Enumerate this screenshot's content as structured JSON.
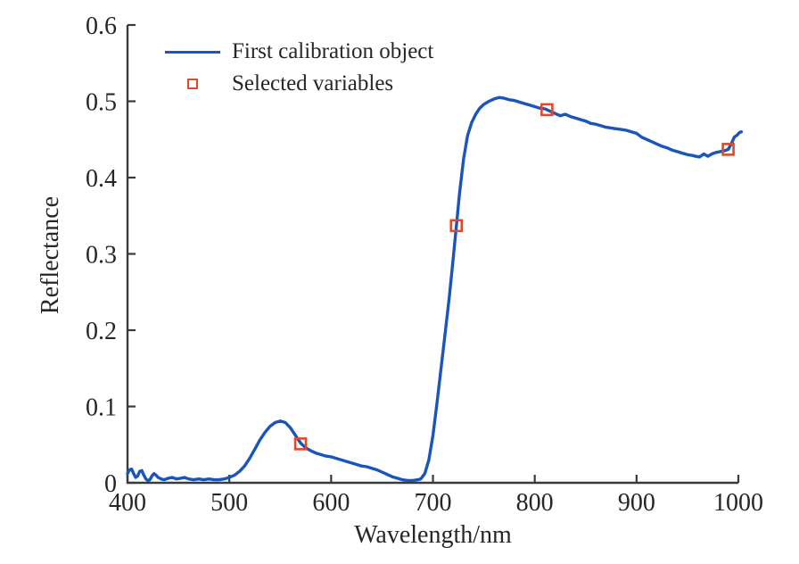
{
  "chart_data": {
    "type": "line",
    "title": "",
    "xlabel": "Wavelength/nm",
    "ylabel": "Reflectance",
    "xlim": [
      400,
      1000
    ],
    "ylim": [
      0,
      0.6
    ],
    "xticks": [
      400,
      500,
      600,
      700,
      800,
      900,
      1000
    ],
    "yticks": [
      0,
      0.1,
      0.2,
      0.3,
      0.4,
      0.5,
      0.6
    ],
    "ytick_labels": [
      "0",
      "0.1",
      "0.2",
      "0.3",
      "0.4",
      "0.5",
      "0.6"
    ],
    "grid": false,
    "box": false,
    "tick_direction": "in",
    "legend_position": "top-left-inside",
    "axis_color": "#3a3a3a",
    "text_color": "#262626",
    "background_color": "#ffffff",
    "series": [
      {
        "name": "First calibration object",
        "type": "line",
        "color": "#1a55bb",
        "line_width": 3.4,
        "x": [
          400,
          402,
          404,
          406,
          408,
          410,
          412,
          414,
          416,
          418,
          420,
          422,
          424,
          426,
          428,
          430,
          433,
          436,
          440,
          444,
          448,
          452,
          456,
          460,
          465,
          470,
          475,
          480,
          485,
          490,
          495,
          500,
          505,
          510,
          515,
          520,
          525,
          530,
          535,
          540,
          545,
          550,
          555,
          560,
          565,
          570,
          575,
          580,
          585,
          590,
          595,
          600,
          605,
          610,
          615,
          620,
          625,
          630,
          635,
          640,
          645,
          650,
          655,
          660,
          665,
          670,
          675,
          680,
          685,
          688,
          692,
          696,
          700,
          704,
          708,
          712,
          716,
          720,
          723,
          726,
          730,
          734,
          738,
          742,
          746,
          750,
          755,
          760,
          765,
          770,
          775,
          780,
          785,
          790,
          795,
          800,
          805,
          810,
          815,
          820,
          825,
          830,
          835,
          840,
          845,
          850,
          855,
          860,
          865,
          870,
          875,
          880,
          885,
          890,
          895,
          900,
          905,
          910,
          915,
          920,
          925,
          930,
          935,
          940,
          945,
          950,
          955,
          958,
          962,
          966,
          970,
          974,
          978,
          982,
          986,
          990,
          993,
          996,
          999,
          1001,
          1003
        ],
        "y": [
          0.012,
          0.017,
          0.018,
          0.012,
          0.007,
          0.009,
          0.015,
          0.016,
          0.01,
          0.005,
          0.003,
          0.004,
          0.009,
          0.012,
          0.01,
          0.007,
          0.005,
          0.004,
          0.006,
          0.007,
          0.005,
          0.006,
          0.007,
          0.005,
          0.004,
          0.005,
          0.004,
          0.005,
          0.004,
          0.004,
          0.005,
          0.007,
          0.01,
          0.015,
          0.022,
          0.032,
          0.044,
          0.056,
          0.066,
          0.074,
          0.079,
          0.081,
          0.079,
          0.072,
          0.062,
          0.052,
          0.046,
          0.042,
          0.039,
          0.037,
          0.035,
          0.034,
          0.032,
          0.03,
          0.028,
          0.026,
          0.024,
          0.022,
          0.021,
          0.019,
          0.017,
          0.014,
          0.011,
          0.008,
          0.006,
          0.004,
          0.003,
          0.003,
          0.004,
          0.005,
          0.012,
          0.03,
          0.062,
          0.105,
          0.15,
          0.196,
          0.243,
          0.295,
          0.337,
          0.378,
          0.424,
          0.455,
          0.472,
          0.483,
          0.491,
          0.496,
          0.5,
          0.503,
          0.505,
          0.504,
          0.502,
          0.501,
          0.499,
          0.497,
          0.495,
          0.493,
          0.491,
          0.49,
          0.487,
          0.484,
          0.481,
          0.483,
          0.48,
          0.478,
          0.476,
          0.474,
          0.471,
          0.47,
          0.468,
          0.466,
          0.465,
          0.464,
          0.463,
          0.462,
          0.46,
          0.458,
          0.453,
          0.45,
          0.447,
          0.444,
          0.441,
          0.439,
          0.436,
          0.434,
          0.432,
          0.43,
          0.429,
          0.428,
          0.427,
          0.431,
          0.428,
          0.431,
          0.433,
          0.434,
          0.435,
          0.437,
          0.444,
          0.453,
          0.456,
          0.459,
          0.46
        ]
      },
      {
        "name": "Selected variables",
        "type": "scatter",
        "marker": "open-square",
        "color": "#e2482a",
        "marker_size": 12,
        "marker_line_width": 2.6,
        "x": [
          570,
          723,
          812,
          990
        ],
        "y": [
          0.051,
          0.337,
          0.489,
          0.437
        ]
      }
    ]
  }
}
